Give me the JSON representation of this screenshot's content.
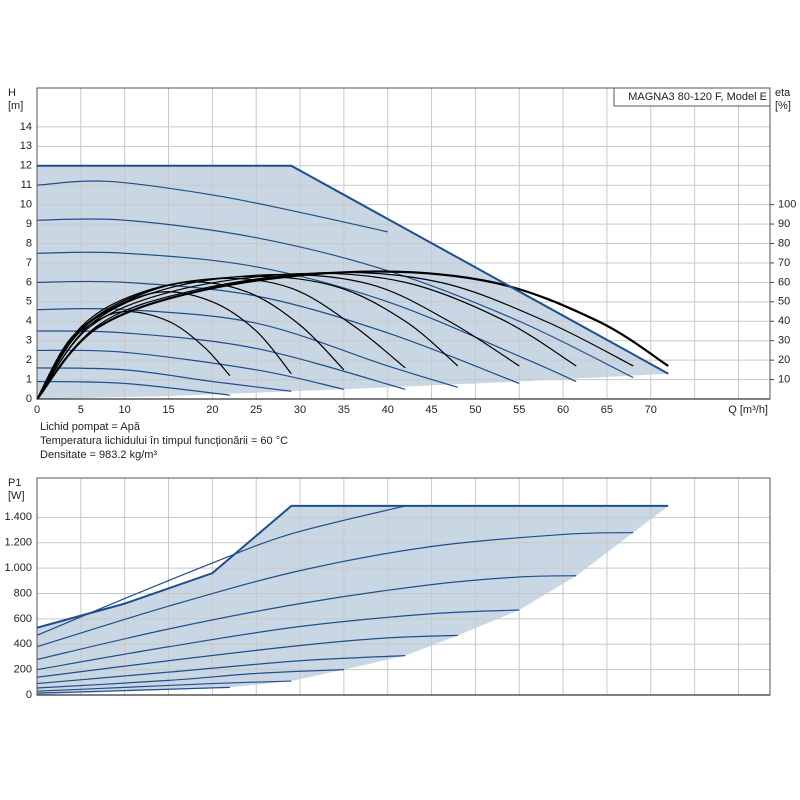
{
  "chart_data": [
    {
      "type": "line",
      "title": "MAGNA3 80-120 F, Model E",
      "y_label": "H",
      "y_unit": "[m]",
      "y2_label": "eta",
      "y2_unit": "[%]",
      "x_label": "Q [m³/h]",
      "notes": [
        "Lichid pompat = Apă",
        "Temperatura lichidului în timpul funcționării = 60 °C",
        "Densitate = 983.2 kg/m³"
      ],
      "xlim": [
        0,
        83.6
      ],
      "ylim": [
        0,
        16
      ],
      "y2lim": [
        0,
        160
      ],
      "xticks": [
        0,
        5,
        10,
        15,
        20,
        25,
        30,
        35,
        40,
        45,
        50,
        55,
        60,
        65,
        70
      ],
      "xgrid": [
        0,
        5,
        10,
        15,
        20,
        25,
        30,
        35,
        40,
        45,
        50,
        55,
        60,
        65,
        70,
        75,
        80
      ],
      "yticks": [
        0,
        1,
        2,
        3,
        4,
        5,
        6,
        7,
        8,
        9,
        10,
        11,
        12,
        13,
        14
      ],
      "y2ticks": [
        10,
        20,
        30,
        40,
        50,
        60,
        70,
        80,
        90,
        100
      ],
      "grid": true,
      "envelope": {
        "color": "#c9d7e5",
        "edge": "#1f4e8c",
        "upper": {
          "x": [
            0,
            29,
            72
          ],
          "values": [
            12,
            12,
            1.3
          ]
        },
        "lower": {
          "x": [
            72,
            55,
            35,
            15,
            0
          ],
          "values": [
            1.3,
            0.9,
            0.5,
            0.15,
            0
          ]
        }
      },
      "series": [
        {
          "axis": "y",
          "color": "#1f4e8c",
          "x": [
            0,
            8,
            20,
            30,
            40
          ],
          "values": [
            11.0,
            11.2,
            10.5,
            9.6,
            8.6
          ]
        },
        {
          "axis": "y",
          "color": "#1f4e8c",
          "x": [
            0,
            10,
            25,
            40,
            55,
            68
          ],
          "values": [
            9.2,
            9.2,
            8.3,
            6.6,
            4.0,
            1.1
          ]
        },
        {
          "axis": "y",
          "color": "#1f4e8c",
          "x": [
            0,
            10,
            25,
            40,
            55,
            61.5
          ],
          "values": [
            7.5,
            7.5,
            6.8,
            5.0,
            2.2,
            0.9
          ]
        },
        {
          "axis": "y",
          "color": "#1f4e8c",
          "x": [
            0,
            10,
            25,
            40,
            55
          ],
          "values": [
            6.0,
            6.0,
            5.3,
            3.4,
            0.8
          ]
        },
        {
          "axis": "y",
          "color": "#1f4e8c",
          "x": [
            0,
            10,
            25,
            40,
            48
          ],
          "values": [
            4.6,
            4.6,
            3.9,
            1.7,
            0.6
          ]
        },
        {
          "axis": "y",
          "color": "#1f4e8c",
          "x": [
            0,
            10,
            25,
            42
          ],
          "values": [
            3.5,
            3.4,
            2.6,
            0.5
          ]
        },
        {
          "axis": "y",
          "color": "#1f4e8c",
          "x": [
            0,
            10,
            25,
            35
          ],
          "values": [
            2.5,
            2.4,
            1.5,
            0.5
          ]
        },
        {
          "axis": "y",
          "color": "#1f4e8c",
          "x": [
            0,
            10,
            20,
            29
          ],
          "values": [
            1.6,
            1.5,
            0.9,
            0.4
          ]
        },
        {
          "axis": "y",
          "color": "#1f4e8c",
          "x": [
            0,
            10,
            22
          ],
          "values": [
            0.9,
            0.8,
            0.2
          ]
        },
        {
          "axis": "y2",
          "color": "#000000",
          "x": [
            0,
            3,
            6,
            10,
            15,
            19,
            22
          ],
          "values": [
            0,
            25,
            38,
            45,
            40,
            27,
            12
          ]
        },
        {
          "axis": "y2",
          "color": "#000000",
          "x": [
            0,
            4,
            8,
            14,
            20,
            25,
            29
          ],
          "values": [
            0,
            30,
            45,
            55,
            50,
            35,
            13
          ]
        },
        {
          "axis": "y2",
          "color": "#000000",
          "x": [
            0,
            4,
            10,
            17,
            24,
            30,
            35
          ],
          "values": [
            0,
            32,
            50,
            60,
            55,
            38,
            15
          ]
        },
        {
          "axis": "y2",
          "color": "#000000",
          "x": [
            0,
            5,
            12,
            21,
            29,
            36,
            42
          ],
          "values": [
            0,
            37,
            55,
            62,
            57,
            38,
            16
          ]
        },
        {
          "axis": "y2",
          "color": "#000000",
          "x": [
            0,
            5,
            13,
            24,
            34,
            42,
            48
          ],
          "values": [
            0,
            36,
            56,
            63,
            58,
            40,
            17
          ]
        },
        {
          "axis": "y2",
          "color": "#000000",
          "x": [
            0,
            6,
            15,
            27,
            38,
            47,
            55
          ],
          "values": [
            0,
            38,
            57,
            64,
            59,
            40,
            17
          ]
        },
        {
          "axis": "y2",
          "color": "#000000",
          "x": [
            0,
            6,
            16,
            30,
            42,
            53,
            61.5
          ],
          "values": [
            0,
            37,
            56,
            64.5,
            60,
            41,
            17
          ]
        },
        {
          "axis": "y2",
          "color": "#000000",
          "x": [
            0,
            7,
            18,
            33,
            46,
            58,
            68
          ],
          "values": [
            0,
            38,
            56,
            65,
            60,
            40,
            17
          ]
        },
        {
          "axis": "y2",
          "color": "#000000",
          "x": [
            0,
            7,
            20,
            37,
            52,
            64,
            72
          ],
          "values": [
            0,
            37,
            57,
            65.5,
            60,
            40,
            17
          ]
        }
      ]
    },
    {
      "type": "line",
      "y_label": "P1",
      "y_unit": "[W]",
      "xlim": [
        0,
        83.6
      ],
      "ylim": [
        0,
        1710
      ],
      "xgrid": [
        0,
        5,
        10,
        15,
        20,
        25,
        30,
        35,
        40,
        45,
        50,
        55,
        60,
        65,
        70,
        75,
        80
      ],
      "yticks": [
        0,
        200,
        400,
        600,
        800,
        {
          "value": 1000,
          "label": "1.000"
        },
        {
          "value": 1200,
          "label": "1.200"
        },
        {
          "value": 1400,
          "label": "1.400"
        }
      ],
      "grid": true,
      "envelope": {
        "color": "#c9d7e5",
        "edge": "#1f4e8c",
        "upper": {
          "x": [
            0,
            10,
            20,
            29,
            72
          ],
          "values": [
            530,
            720,
            960,
            1490,
            1490
          ]
        },
        "lower": {
          "x": [
            72,
            68,
            61.5,
            55,
            48,
            42,
            35,
            29,
            22,
            0
          ],
          "values": [
            1490,
            1280,
            940,
            670,
            470,
            310,
            200,
            110,
            60,
            0
          ]
        }
      },
      "series": [
        {
          "axis": "y",
          "color": "#1f4e8c",
          "x": [
            0,
            10,
            20,
            29,
            42
          ],
          "values": [
            470,
            760,
            1040,
            1270,
            1490
          ]
        },
        {
          "axis": "y",
          "color": "#1f4e8c",
          "x": [
            0,
            15,
            30,
            45,
            60,
            68
          ],
          "values": [
            380,
            700,
            980,
            1170,
            1265,
            1280
          ]
        },
        {
          "axis": "y",
          "color": "#1f4e8c",
          "x": [
            0,
            15,
            30,
            45,
            55,
            61.5
          ],
          "values": [
            280,
            520,
            720,
            870,
            930,
            940
          ]
        },
        {
          "axis": "y",
          "color": "#1f4e8c",
          "x": [
            0,
            15,
            30,
            45,
            55
          ],
          "values": [
            200,
            380,
            540,
            640,
            670
          ]
        },
        {
          "axis": "y",
          "color": "#1f4e8c",
          "x": [
            0,
            15,
            30,
            40,
            48
          ],
          "values": [
            140,
            270,
            390,
            450,
            470
          ]
        },
        {
          "axis": "y",
          "color": "#1f4e8c",
          "x": [
            0,
            15,
            30,
            42
          ],
          "values": [
            90,
            180,
            270,
            310
          ]
        },
        {
          "axis": "y",
          "color": "#1f4e8c",
          "x": [
            0,
            15,
            25,
            35
          ],
          "values": [
            55,
            115,
            170,
            200
          ]
        },
        {
          "axis": "y",
          "color": "#1f4e8c",
          "x": [
            0,
            10,
            20,
            29
          ],
          "values": [
            30,
            60,
            90,
            110
          ]
        },
        {
          "axis": "y",
          "color": "#1f4e8c",
          "x": [
            0,
            10,
            22
          ],
          "values": [
            15,
            35,
            60
          ]
        }
      ]
    }
  ]
}
